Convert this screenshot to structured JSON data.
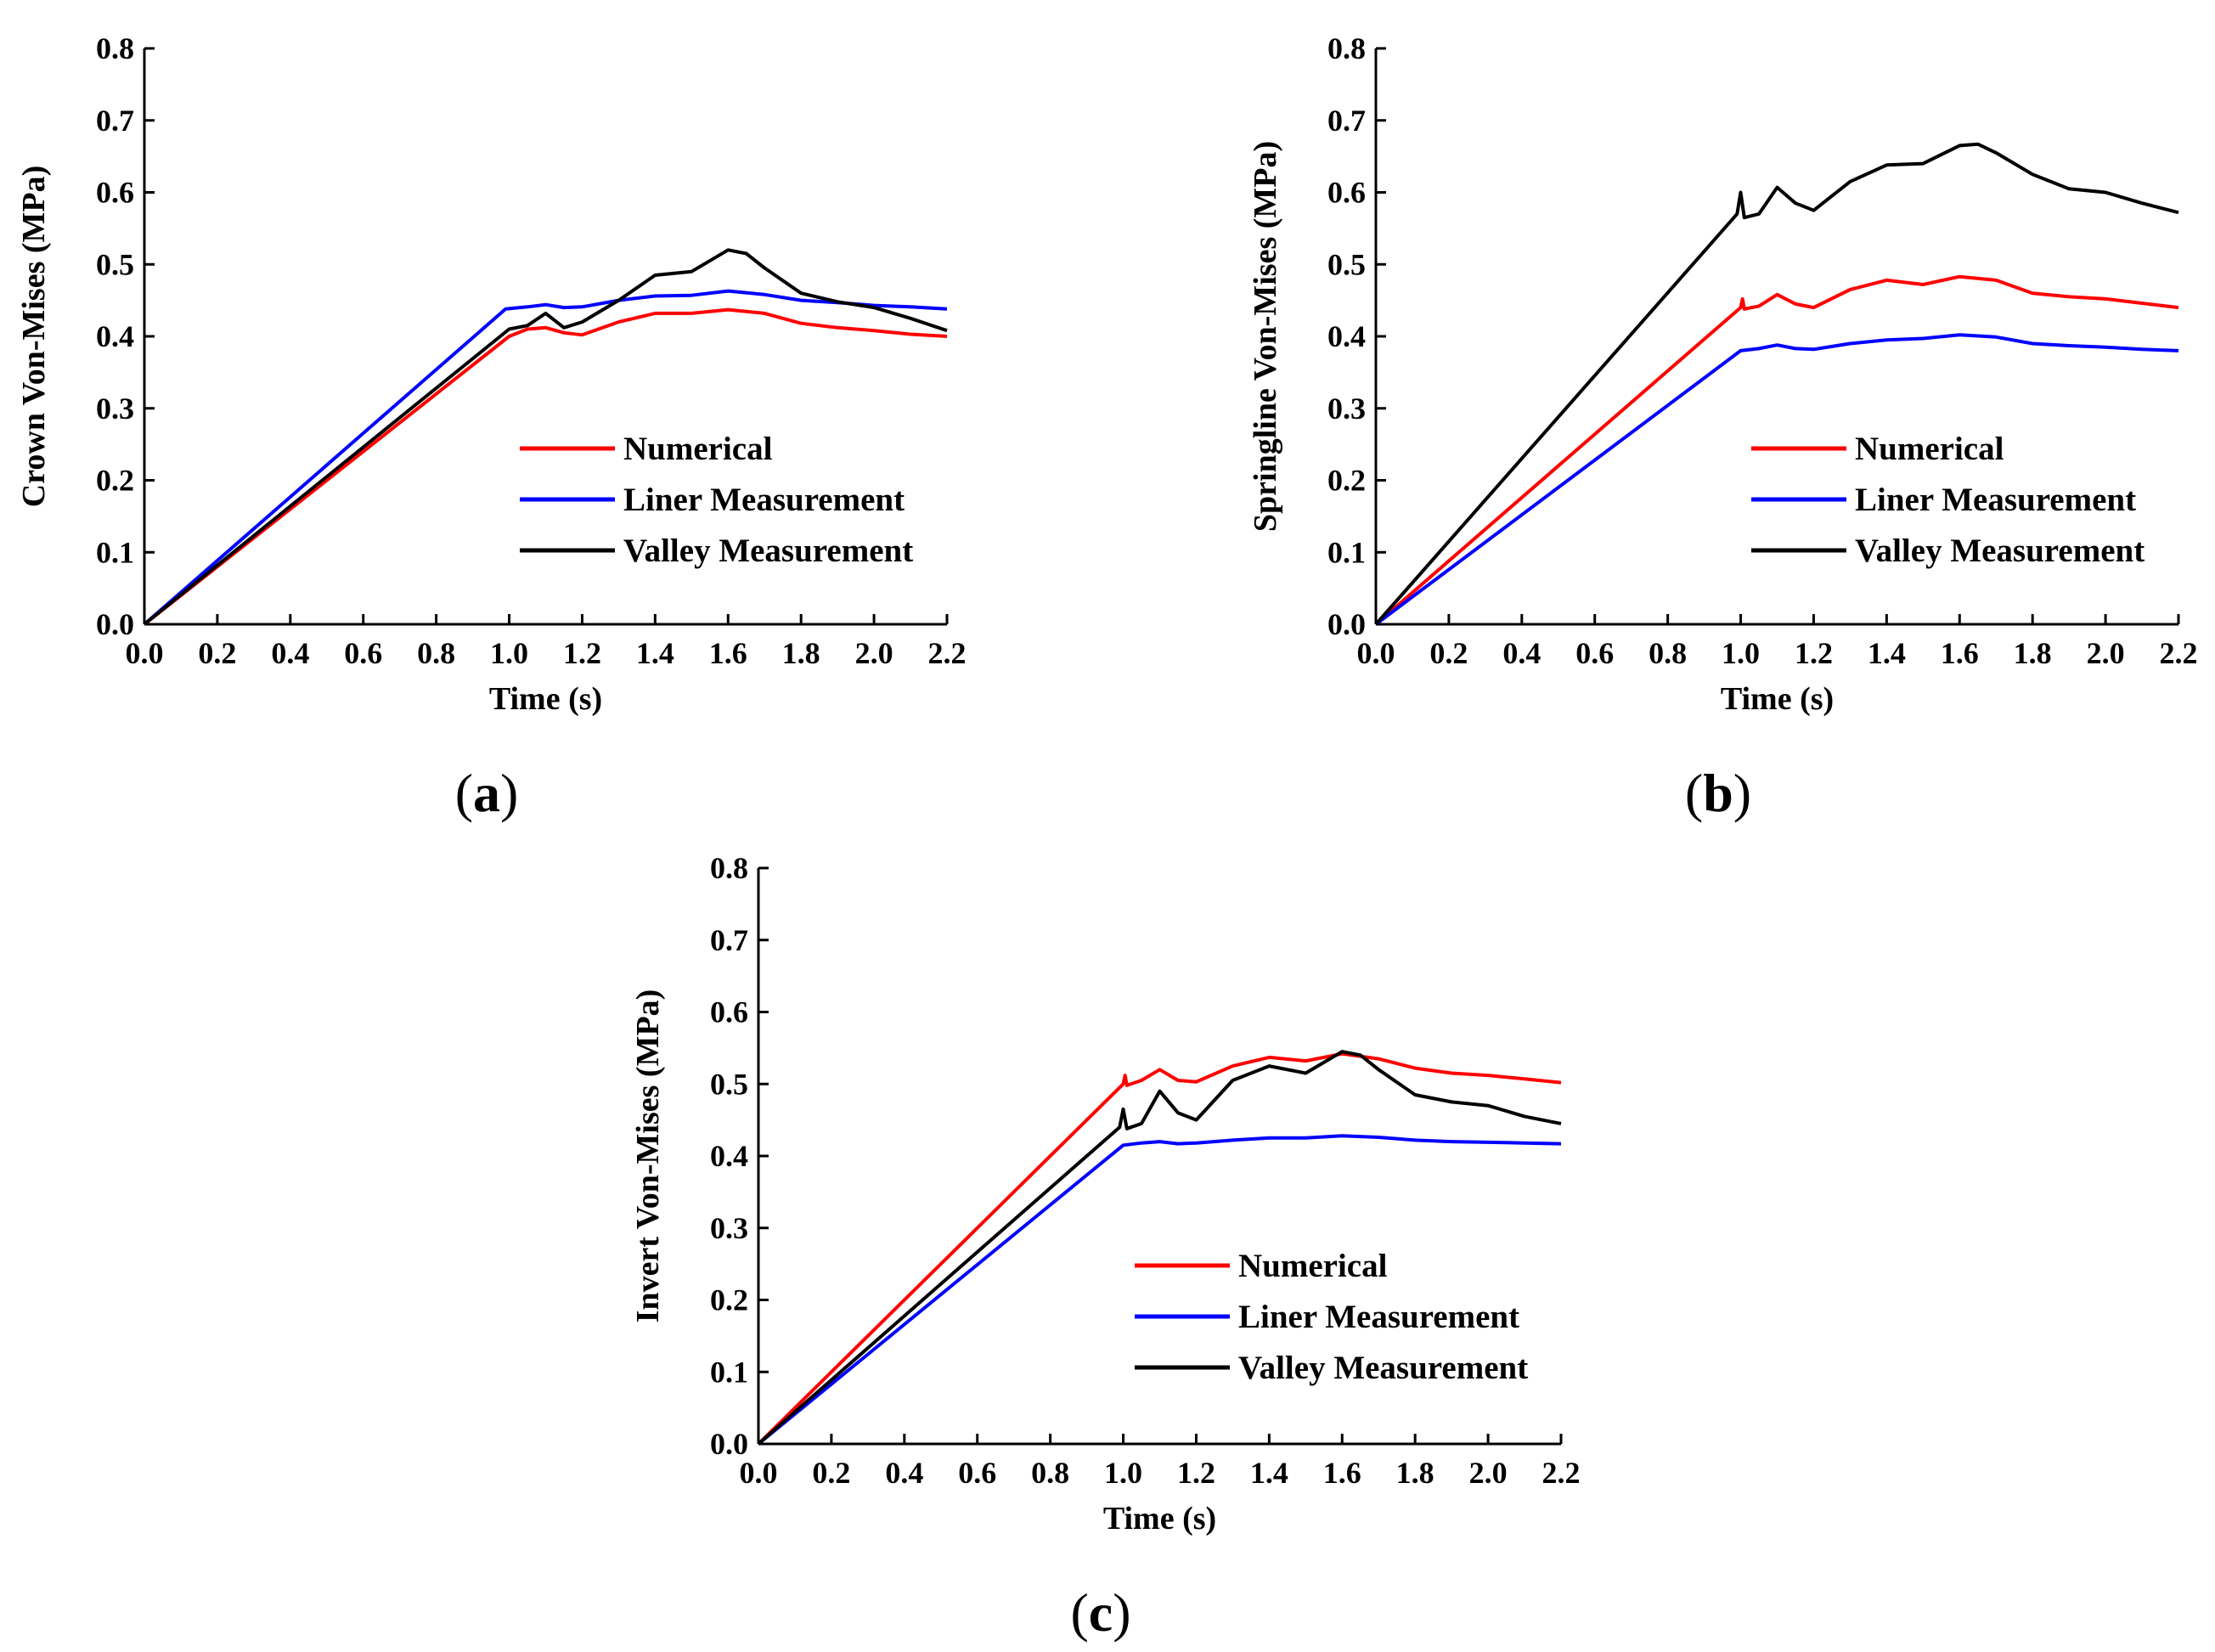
{
  "chart_data": [
    {
      "id": "a",
      "type": "line",
      "caption_letter": "a",
      "title": "",
      "xlabel": "Time (s)",
      "ylabel": "Crown Von-Mises (MPa)",
      "xlim": [
        0,
        2.2
      ],
      "ylim": [
        0,
        0.8
      ],
      "xticks": [
        "0.0",
        "0.2",
        "0.4",
        "0.6",
        "0.8",
        "1.0",
        "1.2",
        "1.4",
        "1.6",
        "1.8",
        "2.0",
        "2.2"
      ],
      "yticks": [
        "0.0",
        "0.1",
        "0.2",
        "0.3",
        "0.4",
        "0.5",
        "0.6",
        "0.7",
        "0.8"
      ],
      "legend_position": "center-right",
      "series": [
        {
          "name": "Numerical",
          "color": "#ff0000",
          "x": [
            0,
            1.0,
            1.05,
            1.1,
            1.15,
            1.2,
            1.3,
            1.4,
            1.5,
            1.6,
            1.7,
            1.8,
            1.9,
            2.0,
            2.1,
            2.2
          ],
          "y": [
            0,
            0.4,
            0.41,
            0.412,
            0.405,
            0.402,
            0.42,
            0.432,
            0.432,
            0.437,
            0.432,
            0.418,
            0.412,
            0.408,
            0.403,
            0.4
          ]
        },
        {
          "name": "Liner Measurement",
          "color": "#0000ff",
          "x": [
            0,
            0.99,
            1.05,
            1.1,
            1.15,
            1.2,
            1.3,
            1.4,
            1.5,
            1.6,
            1.7,
            1.8,
            1.9,
            2.0,
            2.1,
            2.2
          ],
          "y": [
            0,
            0.438,
            0.441,
            0.444,
            0.44,
            0.441,
            0.45,
            0.456,
            0.457,
            0.463,
            0.458,
            0.45,
            0.447,
            0.443,
            0.441,
            0.438
          ]
        },
        {
          "name": "Valley Measurement",
          "color": "#000000",
          "x": [
            0,
            1.0,
            1.05,
            1.1,
            1.15,
            1.2,
            1.3,
            1.4,
            1.5,
            1.6,
            1.65,
            1.7,
            1.8,
            1.9,
            2.0,
            2.1,
            2.2
          ],
          "y": [
            0,
            0.41,
            0.415,
            0.432,
            0.412,
            0.42,
            0.45,
            0.485,
            0.49,
            0.52,
            0.515,
            0.495,
            0.46,
            0.448,
            0.44,
            0.425,
            0.408
          ]
        }
      ]
    },
    {
      "id": "b",
      "type": "line",
      "caption_letter": "b",
      "title": "",
      "xlabel": "Time (s)",
      "ylabel": "Springline Von-Mises (MPa)",
      "xlim": [
        0,
        2.2
      ],
      "ylim": [
        0,
        0.8
      ],
      "xticks": [
        "0.0",
        "0.2",
        "0.4",
        "0.6",
        "0.8",
        "1.0",
        "1.2",
        "1.4",
        "1.6",
        "1.8",
        "2.0",
        "2.2"
      ],
      "yticks": [
        "0.0",
        "0.1",
        "0.2",
        "0.3",
        "0.4",
        "0.5",
        "0.6",
        "0.7",
        "0.8"
      ],
      "legend_position": "center-right",
      "series": [
        {
          "name": "Numerical",
          "color": "#ff0000",
          "x": [
            0,
            1.0,
            1.005,
            1.01,
            1.05,
            1.1,
            1.15,
            1.2,
            1.3,
            1.4,
            1.5,
            1.6,
            1.7,
            1.8,
            1.9,
            2.0,
            2.1,
            2.2
          ],
          "y": [
            0,
            0.44,
            0.452,
            0.438,
            0.442,
            0.458,
            0.445,
            0.44,
            0.465,
            0.478,
            0.472,
            0.483,
            0.478,
            0.46,
            0.455,
            0.452,
            0.446,
            0.44
          ]
        },
        {
          "name": "Liner Measurement",
          "color": "#0000ff",
          "x": [
            0,
            1.0,
            1.05,
            1.1,
            1.15,
            1.2,
            1.3,
            1.4,
            1.5,
            1.6,
            1.7,
            1.8,
            1.9,
            2.0,
            2.1,
            2.2
          ],
          "y": [
            0,
            0.38,
            0.383,
            0.388,
            0.383,
            0.382,
            0.39,
            0.395,
            0.397,
            0.402,
            0.399,
            0.39,
            0.387,
            0.385,
            0.382,
            0.38
          ]
        },
        {
          "name": "Valley Measurement",
          "color": "#000000",
          "x": [
            0,
            0.99,
            1.0,
            1.01,
            1.05,
            1.1,
            1.15,
            1.2,
            1.3,
            1.4,
            1.5,
            1.6,
            1.65,
            1.7,
            1.8,
            1.9,
            2.0,
            2.1,
            2.2
          ],
          "y": [
            0,
            0.57,
            0.6,
            0.565,
            0.57,
            0.607,
            0.585,
            0.575,
            0.615,
            0.638,
            0.64,
            0.665,
            0.667,
            0.655,
            0.625,
            0.605,
            0.6,
            0.585,
            0.572
          ]
        }
      ]
    },
    {
      "id": "c",
      "type": "line",
      "caption_letter": "c",
      "title": "",
      "xlabel": "Time (s)",
      "ylabel": "Invert Von-Mises (MPa)",
      "xlim": [
        0,
        2.2
      ],
      "ylim": [
        0,
        0.8
      ],
      "xticks": [
        "0.0",
        "0.2",
        "0.4",
        "0.6",
        "0.8",
        "1.0",
        "1.2",
        "1.4",
        "1.6",
        "1.8",
        "2.0",
        "2.2"
      ],
      "yticks": [
        "0.0",
        "0.1",
        "0.2",
        "0.3",
        "0.4",
        "0.5",
        "0.6",
        "0.7",
        "0.8"
      ],
      "legend_position": "center-right",
      "series": [
        {
          "name": "Numerical",
          "color": "#ff0000",
          "x": [
            0,
            1.0,
            1.005,
            1.01,
            1.05,
            1.1,
            1.15,
            1.2,
            1.3,
            1.4,
            1.5,
            1.6,
            1.7,
            1.8,
            1.9,
            2.0,
            2.1,
            2.2
          ],
          "y": [
            0,
            0.5,
            0.512,
            0.498,
            0.505,
            0.52,
            0.505,
            0.503,
            0.525,
            0.537,
            0.532,
            0.542,
            0.535,
            0.522,
            0.515,
            0.512,
            0.507,
            0.502
          ]
        },
        {
          "name": "Liner Measurement",
          "color": "#0000ff",
          "x": [
            0,
            1.0,
            1.05,
            1.1,
            1.15,
            1.2,
            1.3,
            1.4,
            1.5,
            1.6,
            1.7,
            1.8,
            1.9,
            2.0,
            2.1,
            2.2
          ],
          "y": [
            0,
            0.415,
            0.418,
            0.42,
            0.417,
            0.418,
            0.422,
            0.425,
            0.425,
            0.428,
            0.426,
            0.422,
            0.42,
            0.419,
            0.418,
            0.417
          ]
        },
        {
          "name": "Valley Measurement",
          "color": "#000000",
          "x": [
            0,
            0.99,
            1.0,
            1.01,
            1.05,
            1.1,
            1.15,
            1.2,
            1.3,
            1.4,
            1.5,
            1.6,
            1.65,
            1.7,
            1.8,
            1.9,
            2.0,
            2.1,
            2.2
          ],
          "y": [
            0,
            0.44,
            0.465,
            0.438,
            0.445,
            0.49,
            0.46,
            0.45,
            0.505,
            0.525,
            0.515,
            0.545,
            0.54,
            0.52,
            0.485,
            0.475,
            0.47,
            0.455,
            0.445
          ]
        }
      ]
    }
  ]
}
